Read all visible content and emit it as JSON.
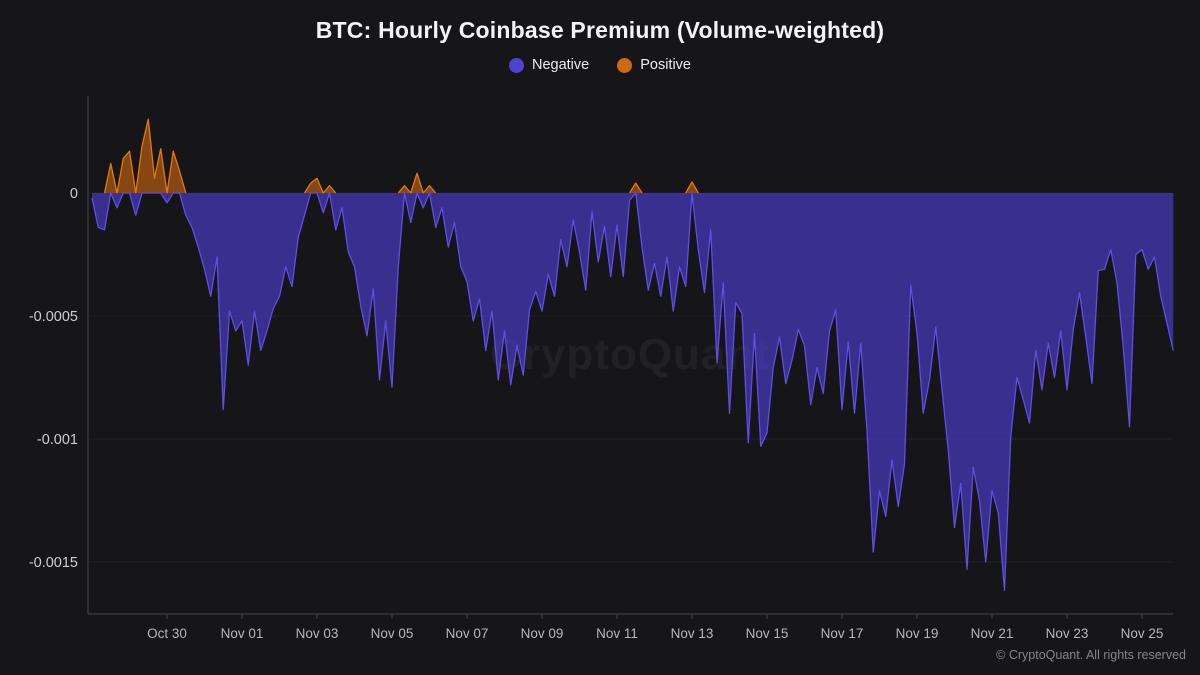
{
  "title": "BTC: Hourly Coinbase Premium (Volume-weighted)",
  "watermark": "CryptoQuant",
  "footer": "© CryptoQuant. All rights reserved",
  "legend": [
    {
      "label": "Negative",
      "color": "#4f41d4"
    },
    {
      "label": "Positive",
      "color": "#cc6a10"
    }
  ],
  "colors": {
    "background": "#161619",
    "title_text": "#f4f4f6",
    "negative_line": "#5d4fe0",
    "negative_fill": "#4d3fd6",
    "positive_line": "#e5790f",
    "positive_fill": "#d2690f",
    "grid": "rgba(255,255,255,0.055)",
    "axis": "#3d3d45",
    "y_tick_text": "#cdcdd2",
    "x_tick_text": "#b6b6bd"
  },
  "chart_data": {
    "type": "area",
    "title": "BTC: Hourly Coinbase Premium (Volume-weighted)",
    "series_name": "Coinbase Premium (volume-weighted)",
    "note": "hourly premium; values stored in millionths (1e-6); negative values rendered purple, positive orange",
    "x_start": "Oct 28 00:00",
    "x_step_hours": 4,
    "ylim": [
      -0.0017,
      0.0004
    ],
    "grid": "horizontal",
    "legend_position": "top",
    "y_ticks": [
      {
        "label": "0",
        "value": 0
      },
      {
        "label": "-0.0005",
        "value": -0.0005
      },
      {
        "label": "-0.001",
        "value": -0.001
      },
      {
        "label": "-0.0015",
        "value": -0.0015
      }
    ],
    "x_ticks": [
      "Oct 30",
      "Nov 01",
      "Nov 03",
      "Nov 05",
      "Nov 07",
      "Nov 09",
      "Nov 11",
      "Nov 13",
      "Nov 15",
      "Nov 17",
      "Nov 19",
      "Nov 21",
      "Nov 23",
      "Nov 25"
    ],
    "values_e6": [
      -20,
      -140,
      -150,
      120,
      -60,
      140,
      170,
      -90,
      190,
      300,
      60,
      180,
      -40,
      170,
      90,
      -90,
      -140,
      -220,
      -310,
      -420,
      -260,
      -880,
      -480,
      -560,
      -520,
      -700,
      -480,
      -640,
      -560,
      -470,
      -420,
      -300,
      -380,
      -180,
      -90,
      40,
      60,
      -80,
      30,
      -150,
      -60,
      -240,
      -300,
      -460,
      -580,
      -390,
      -760,
      -520,
      -790,
      -300,
      30,
      -120,
      80,
      -60,
      30,
      -140,
      -60,
      -220,
      -120,
      -300,
      -360,
      -520,
      -430,
      -640,
      -480,
      -760,
      -560,
      -780,
      -620,
      -740,
      -475,
      -400,
      -480,
      -330,
      -420,
      -190,
      -300,
      -110,
      -240,
      -395,
      -75,
      -280,
      -135,
      -340,
      -130,
      -340,
      -30,
      40,
      -220,
      -395,
      -285,
      -420,
      -260,
      -480,
      -300,
      -380,
      45,
      -230,
      -405,
      -150,
      -690,
      -365,
      -895,
      -445,
      -490,
      -1015,
      -570,
      -1030,
      -975,
      -710,
      -585,
      -775,
      -680,
      -555,
      -620,
      -860,
      -710,
      -815,
      -560,
      -475,
      -880,
      -605,
      -895,
      -610,
      -965,
      -1460,
      -1210,
      -1315,
      -1085,
      -1275,
      -1100,
      -375,
      -570,
      -895,
      -760,
      -545,
      -800,
      -1045,
      -1360,
      -1180,
      -1530,
      -1115,
      -1250,
      -1500,
      -1210,
      -1300,
      -1615,
      -990,
      -750,
      -840,
      -935,
      -640,
      -800,
      -610,
      -750,
      -560,
      -800,
      -555,
      -405,
      -585,
      -775,
      -315,
      -310,
      -230,
      -365,
      -625,
      -950,
      -250,
      -230,
      -310,
      -260,
      -420,
      -530,
      -640
    ]
  }
}
